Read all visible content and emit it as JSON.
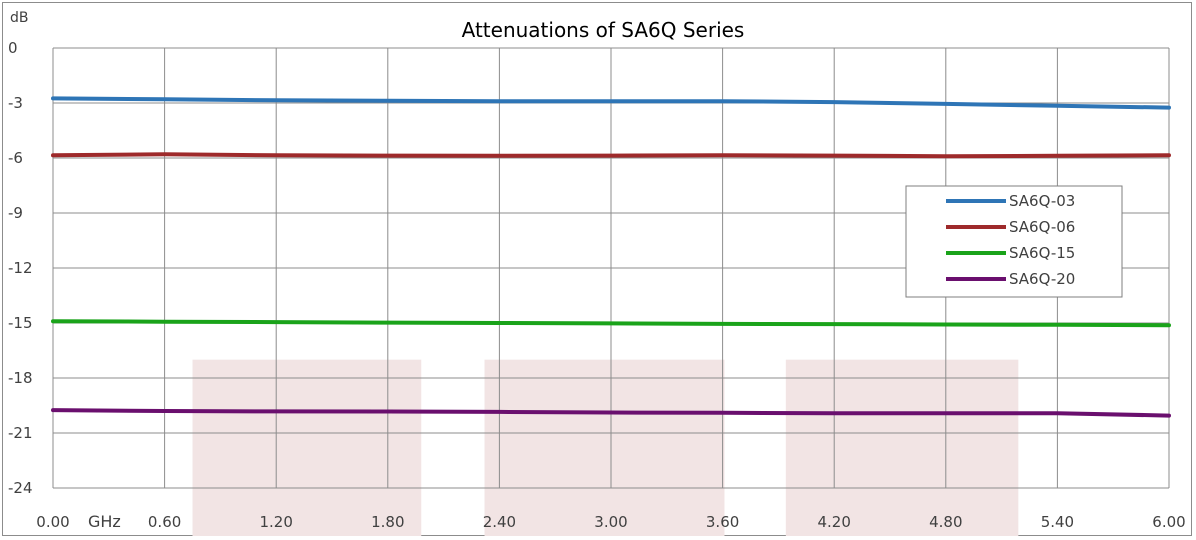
{
  "chart_data": {
    "type": "line",
    "title": "Attenuations of SA6Q Series",
    "ylabel": "dB",
    "xlabel": "GHz",
    "xlim": [
      0,
      6
    ],
    "ylim": [
      -24,
      0
    ],
    "x_ticks": [
      "0.00",
      "0.60",
      "1.20",
      "1.80",
      "2.40",
      "3.00",
      "3.60",
      "4.20",
      "4.80",
      "5.40",
      "6.00"
    ],
    "y_ticks": [
      "0",
      "-3",
      "-6",
      "-9",
      "-12",
      "-15",
      "-18",
      "-21",
      "-24"
    ],
    "grid": true,
    "legend_position": "right",
    "background_bands": [
      {
        "x": [
          0.75,
          1.98
        ],
        "y": [
          -24,
          -17
        ]
      },
      {
        "x": [
          2.32,
          3.61
        ],
        "y": [
          -24,
          -17
        ]
      },
      {
        "x": [
          3.94,
          5.19
        ],
        "y": [
          -24,
          -17
        ]
      }
    ],
    "band_color": "#f2e4e4",
    "x": [
      0,
      0.6,
      1.2,
      1.8,
      2.4,
      3.0,
      3.6,
      4.2,
      4.8,
      5.4,
      6.0
    ],
    "series": [
      {
        "name": "SA6Q-03",
        "color": "#2e75b6",
        "values": [
          -2.75,
          -2.8,
          -2.85,
          -2.88,
          -2.9,
          -2.9,
          -2.9,
          -2.95,
          -3.05,
          -3.15,
          -3.25
        ]
      },
      {
        "name": "SA6Q-06",
        "color": "#9e2a2b",
        "values": [
          -5.85,
          -5.8,
          -5.85,
          -5.87,
          -5.88,
          -5.87,
          -5.85,
          -5.87,
          -5.9,
          -5.88,
          -5.85
        ]
      },
      {
        "name": "SA6Q-15",
        "color": "#1aa31a",
        "values": [
          -14.9,
          -14.93,
          -14.95,
          -14.98,
          -15.0,
          -15.02,
          -15.05,
          -15.06,
          -15.08,
          -15.1,
          -15.12
        ]
      },
      {
        "name": "SA6Q-20",
        "color": "#6a0f6e",
        "values": [
          -19.75,
          -19.8,
          -19.82,
          -19.83,
          -19.85,
          -19.88,
          -19.9,
          -19.92,
          -19.92,
          -19.92,
          -20.05
        ]
      }
    ]
  }
}
